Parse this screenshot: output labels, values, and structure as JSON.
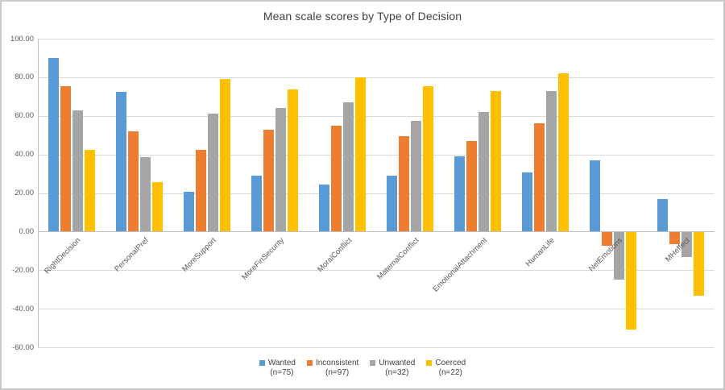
{
  "window": {
    "background": "#ffffff",
    "border_color": "#c9c9c9"
  },
  "chart_data": {
    "type": "bar",
    "title": "Mean scale scores by Type of Decision",
    "categories": [
      "RightDecision",
      "PersonalPref",
      "MoreSupport",
      "MoreFinSecurity",
      "MoralConflict",
      "MaternalConflict",
      "EmotionalAttachment",
      "HumanLife",
      "NetEmotions",
      "MHeffect"
    ],
    "series": [
      {
        "name": "Wanted",
        "n_label": "(n=75)",
        "color": "#5B9BD5",
        "values": [
          90.0,
          72.5,
          20.5,
          29.0,
          24.5,
          29.0,
          39.0,
          30.5,
          37.0,
          17.0
        ]
      },
      {
        "name": "Inconsistent",
        "n_label": "(n=97)",
        "color": "#ED7D31",
        "values": [
          75.5,
          52.0,
          42.5,
          53.0,
          55.0,
          49.5,
          47.0,
          56.0,
          -7.0,
          -6.0
        ]
      },
      {
        "name": "Unwanted",
        "n_label": "(n=32)",
        "color": "#A5A5A5",
        "values": [
          63.0,
          38.5,
          61.0,
          64.0,
          67.0,
          57.5,
          62.0,
          73.0,
          -24.5,
          -13.0
        ]
      },
      {
        "name": "Coerced",
        "n_label": "(n=22)",
        "color": "#FFC000",
        "values": [
          42.5,
          25.5,
          79.0,
          73.5,
          80.0,
          75.5,
          73.0,
          82.0,
          -50.5,
          -33.0
        ]
      }
    ],
    "y_axis": {
      "min": -60,
      "max": 100,
      "step": 20,
      "tick_labels": [
        "100.00",
        "80.00",
        "60.00",
        "40.00",
        "20.00",
        "0.00",
        "-20.00",
        "-40.00",
        "-60.00"
      ]
    },
    "grid": true,
    "gridline_color": "#d9d9d9",
    "axis_line_color": "#bfbfbf",
    "legend_position": "bottom"
  }
}
